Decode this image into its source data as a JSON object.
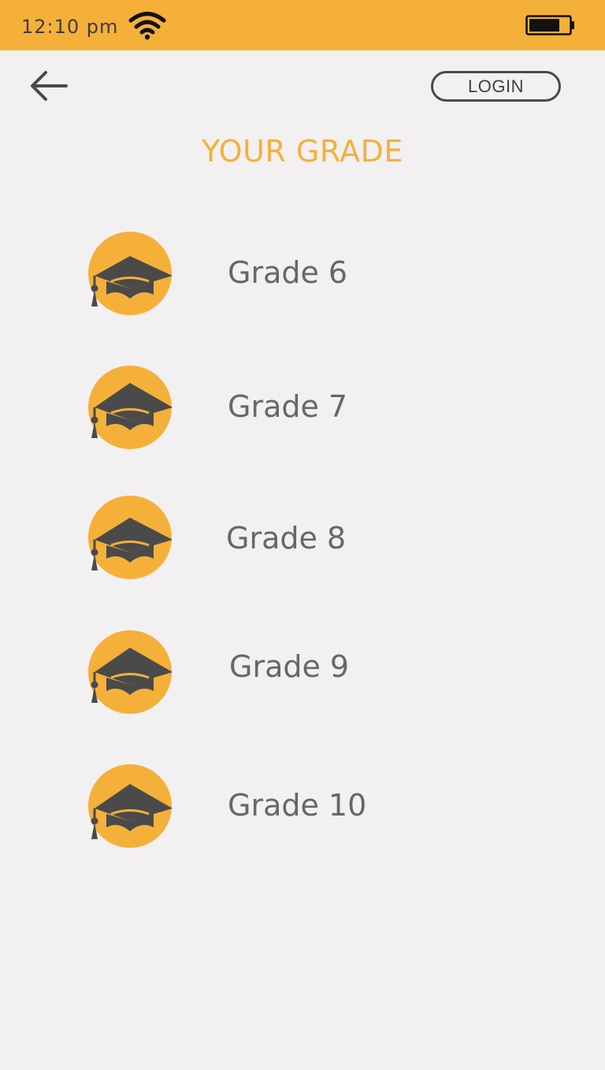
{
  "status_bar": {
    "time": "12:10 pm",
    "wifi_icon": "wifi-icon",
    "battery_icon": "battery-icon",
    "background_color": "#f5b03a"
  },
  "nav": {
    "back_icon": "arrow-left-icon",
    "login_label": "LOGIN"
  },
  "page": {
    "title": "YOUR GRADE",
    "accent_color": "#f5b03a"
  },
  "grades": [
    {
      "label": "Grade 6",
      "icon": "graduation-cap-icon"
    },
    {
      "label": "Grade 7",
      "icon": "graduation-cap-icon"
    },
    {
      "label": "Grade 8",
      "icon": "graduation-cap-icon"
    },
    {
      "label": "Grade 9",
      "icon": "graduation-cap-icon"
    },
    {
      "label": "Grade 10",
      "icon": "graduation-cap-icon"
    }
  ]
}
